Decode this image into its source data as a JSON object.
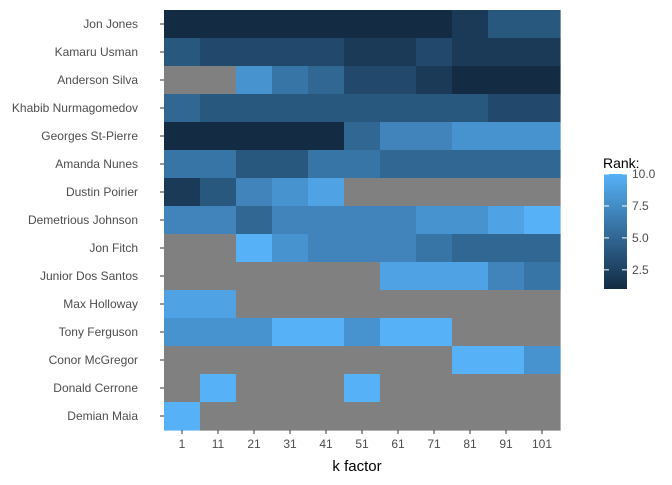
{
  "chart_data": {
    "type": "heatmap",
    "xlabel": "k factor",
    "ylabel": "",
    "x": [
      "1",
      "11",
      "21",
      "31",
      "41",
      "51",
      "61",
      "71",
      "81",
      "91",
      "101"
    ],
    "y": [
      "Jon Jones",
      "Kamaru Usman",
      "Anderson Silva",
      "Khabib Nurmagomedov",
      "Georges St-Pierre",
      "Amanda Nunes",
      "Dustin Poirier",
      "Demetrious Johnson",
      "Jon Fitch",
      "Junior Dos Santos",
      "Max Holloway",
      "Tony Ferguson",
      "Conor McGregor",
      "Donald Cerrone",
      "Demian Maia"
    ],
    "values": [
      [
        1,
        1,
        1,
        1,
        1,
        1,
        1,
        1,
        2,
        4,
        4
      ],
      [
        4,
        3,
        3,
        3,
        3,
        2,
        2,
        3,
        2,
        2,
        2
      ],
      [
        null,
        null,
        8,
        6,
        5,
        3,
        3,
        2,
        1,
        1,
        1
      ],
      [
        5,
        4,
        4,
        4,
        4,
        4,
        4,
        4,
        4,
        3,
        3
      ],
      [
        1,
        1,
        1,
        1,
        1,
        5,
        7,
        7,
        8,
        8,
        8
      ],
      [
        6,
        6,
        4,
        4,
        6,
        6,
        5,
        5,
        5,
        5,
        5
      ],
      [
        2,
        4,
        7,
        8,
        9,
        null,
        null,
        null,
        null,
        null,
        null
      ],
      [
        7,
        7,
        5,
        7,
        7,
        7,
        7,
        8,
        8,
        9,
        10
      ],
      [
        null,
        null,
        10,
        8,
        7,
        7,
        7,
        6,
        5,
        5,
        5
      ],
      [
        null,
        null,
        null,
        null,
        null,
        null,
        9,
        9,
        9,
        7,
        6
      ],
      [
        9,
        9,
        null,
        null,
        null,
        null,
        null,
        null,
        null,
        null,
        null
      ],
      [
        8,
        8,
        8,
        10,
        10,
        8,
        10,
        10,
        null,
        null,
        null
      ],
      [
        null,
        null,
        null,
        null,
        null,
        null,
        null,
        null,
        10,
        10,
        8
      ],
      [
        null,
        10,
        null,
        null,
        null,
        10,
        null,
        null,
        null,
        null,
        null
      ],
      [
        10,
        null,
        null,
        null,
        null,
        null,
        null,
        null,
        null,
        null,
        null
      ]
    ],
    "missing_color": "#808080",
    "color_low": "#132B43",
    "color_high": "#56B1F7",
    "value_range": [
      1,
      10
    ],
    "legend": {
      "title": "Rank:",
      "ticks": [
        2.5,
        5.0,
        7.5,
        10.0
      ],
      "tick_labels": [
        "2.5",
        "5.0",
        "7.5",
        "10.0"
      ],
      "placement": "right"
    },
    "grid": false
  }
}
